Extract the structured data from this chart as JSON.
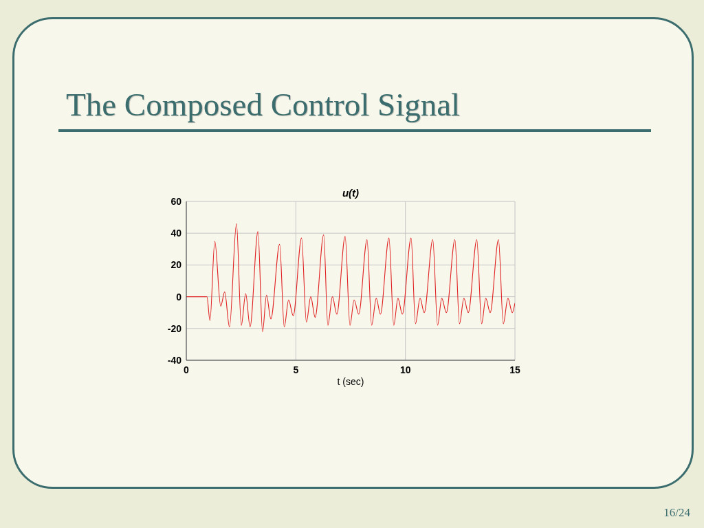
{
  "chart_data": {
    "type": "line",
    "title": "The Composed Control Signal",
    "subtitle": "u(t)",
    "xlabel": "t (sec)",
    "x": [
      0,
      0.94,
      1.08,
      1.3,
      1.57,
      1.75,
      1.97,
      2.29,
      2.51,
      2.71,
      2.91,
      3.27,
      3.48,
      3.66,
      3.86,
      4.26,
      4.47,
      4.67,
      4.88,
      5.26,
      5.48,
      5.68,
      5.88,
      6.27,
      6.46,
      6.67,
      6.87,
      7.25,
      7.47,
      7.66,
      7.87,
      8.25,
      8.46,
      8.67,
      8.86,
      9.25,
      9.47,
      9.66,
      9.86,
      10.26,
      10.46,
      10.67,
      10.86,
      11.25,
      11.47,
      11.66,
      11.87,
      12.26,
      12.47,
      12.67,
      12.87,
      13.26,
      13.48,
      13.67,
      13.87,
      14.25,
      14.47,
      14.68,
      14.88,
      15
    ],
    "values": [
      0,
      0,
      -15,
      35,
      -6,
      3,
      -19,
      46,
      -18,
      2,
      -19,
      41,
      -22,
      1,
      -14,
      33,
      -19,
      -2,
      -12,
      37,
      -16,
      0,
      -13,
      39,
      -18,
      0,
      -11,
      38,
      -18,
      -2,
      -11,
      36,
      -18,
      -1,
      -11,
      37,
      -18,
      -1,
      -11,
      37,
      -17,
      -1,
      -10,
      36,
      -18,
      -1,
      -10,
      36,
      -17,
      -1,
      -10,
      36,
      -17,
      -1,
      -10,
      36,
      -17,
      -1,
      -10,
      -4
    ],
    "color": "#e02020",
    "marker": "none",
    "line_style": "solid",
    "xlim": [
      0,
      15
    ],
    "xticks": [
      0,
      5,
      10,
      15
    ],
    "ylim": [
      -40,
      60
    ],
    "yticks": [
      -40,
      -20,
      0,
      20,
      40,
      60
    ],
    "grid": true,
    "annotations": [
      "16/24"
    ]
  }
}
